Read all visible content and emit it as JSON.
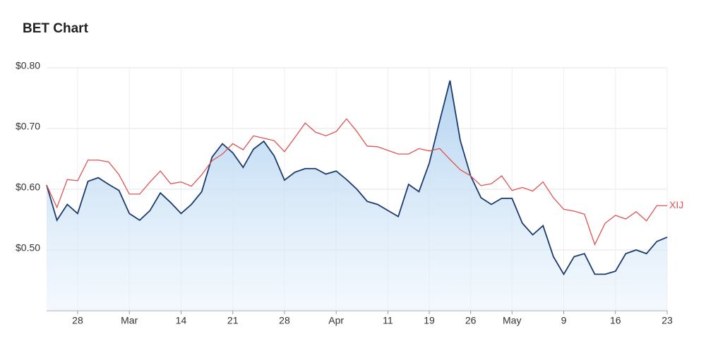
{
  "chart_data": {
    "type": "line",
    "title": "BET Chart",
    "categories": [
      null,
      null,
      null,
      "28",
      null,
      null,
      null,
      null,
      "Mar",
      null,
      null,
      null,
      null,
      "14",
      null,
      null,
      null,
      null,
      "21",
      null,
      null,
      null,
      null,
      "28",
      null,
      null,
      null,
      null,
      "Apr",
      null,
      null,
      null,
      null,
      "11",
      null,
      null,
      null,
      "19",
      null,
      null,
      null,
      "26",
      null,
      null,
      null,
      "May",
      null,
      null,
      null,
      null,
      "9",
      null,
      null,
      null,
      null,
      "16",
      null,
      null,
      null,
      null,
      "23"
    ],
    "series": [
      {
        "color": "#1a3a6e",
        "fill": true,
        "values": [
          0.607,
          0.549,
          0.575,
          0.56,
          0.613,
          0.619,
          0.608,
          0.598,
          0.56,
          0.549,
          0.565,
          0.594,
          0.578,
          0.56,
          0.575,
          0.596,
          0.653,
          0.675,
          0.66,
          0.636,
          0.666,
          0.679,
          0.655,
          0.615,
          0.628,
          0.634,
          0.634,
          0.625,
          0.63,
          0.616,
          0.6,
          0.58,
          0.575,
          0.565,
          0.555,
          0.608,
          0.596,
          0.643,
          0.712,
          0.779,
          0.68,
          0.622,
          0.586,
          0.575,
          0.585,
          0.585,
          0.544,
          0.525,
          0.54,
          0.489,
          0.46,
          0.489,
          0.494,
          0.46,
          0.46,
          0.465,
          0.494,
          0.5,
          0.494,
          0.514,
          0.521
        ]
      },
      {
        "name": "XIJ",
        "color": "#e05252",
        "fill": false,
        "values": [
          0.607,
          0.57,
          0.616,
          0.614,
          0.648,
          0.648,
          0.645,
          0.624,
          0.592,
          0.592,
          0.612,
          0.63,
          0.609,
          0.612,
          0.605,
          0.624,
          0.647,
          0.658,
          0.675,
          0.665,
          0.688,
          0.684,
          0.68,
          0.662,
          0.685,
          0.709,
          0.694,
          0.688,
          0.695,
          0.716,
          0.695,
          0.671,
          0.67,
          0.664,
          0.658,
          0.658,
          0.667,
          0.663,
          0.667,
          0.649,
          0.632,
          0.622,
          0.606,
          0.609,
          0.622,
          0.598,
          0.603,
          0.597,
          0.612,
          0.586,
          0.567,
          0.564,
          0.559,
          0.509,
          0.544,
          0.557,
          0.551,
          0.563,
          0.548,
          0.573,
          0.573
        ]
      }
    ],
    "ylim": [
      0.4,
      0.8
    ],
    "yticks": [
      {
        "value": 0.5,
        "label": "$0.50"
      },
      {
        "value": 0.6,
        "label": "$0.60"
      },
      {
        "value": 0.7,
        "label": "$0.70"
      },
      {
        "value": 0.8,
        "label": "$0.80"
      }
    ],
    "grid": true
  }
}
